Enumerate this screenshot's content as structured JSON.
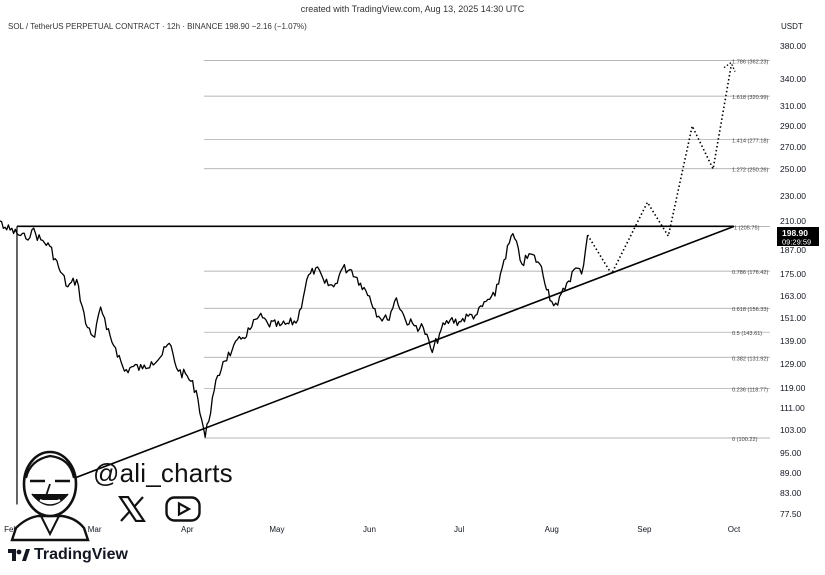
{
  "header": {
    "created": "created with TradingView.com, Aug 13, 2025 14:30 UTC",
    "symbol_line": "SOL / TetherUS PERPETUAL CONTRACT · 12h · BINANCE  198.90  −2.16 (−1.07%)",
    "currency": "USDT"
  },
  "overlay": {
    "handle": "@ali_charts",
    "brand": "TradingView",
    "icons": [
      "x-logo-icon",
      "youtube-icon",
      "tradingview-logo-icon",
      "author-avatar-icon"
    ]
  },
  "chart_data": {
    "type": "line",
    "y_ticks": [
      "380.00",
      "340.00",
      "310.00",
      "290.00",
      "270.00",
      "250.00",
      "230.00",
      "210.00",
      "187.00",
      "175.00",
      "163.00",
      "151.00",
      "139.00",
      "129.00",
      "119.00",
      "111.00",
      "103.00",
      "95.00",
      "89.00",
      "83.00",
      "77.50"
    ],
    "y_tick_values": [
      380,
      340,
      310,
      290,
      270,
      250,
      230,
      210,
      187,
      175,
      163,
      151,
      139,
      129,
      119,
      111,
      103,
      95,
      89,
      83,
      77.5
    ],
    "x_ticks": [
      "Feb",
      "Mar",
      "Apr",
      "May",
      "Jun",
      "Jul",
      "Aug",
      "Sep",
      "Oct"
    ],
    "x_tick_values": [
      "2025-02-01",
      "2025-03-01",
      "2025-04-01",
      "2025-05-01",
      "2025-06-01",
      "2025-07-01",
      "2025-08-01",
      "2025-09-01",
      "2025-10-01"
    ],
    "price_label": "198.90",
    "countdown_label": "09:29:59",
    "colors": {
      "price_line": "#000000",
      "price_badge": "#000000",
      "fib_lines": "#9e9e9e",
      "background": "#ffffff"
    },
    "fib_levels": [
      {
        "label": "1.786 (362.23)",
        "value": 362.23
      },
      {
        "label": "1.618 (320.99)",
        "value": 320.99
      },
      {
        "label": "1.414 (277.18)",
        "value": 277.18
      },
      {
        "label": "1.272 (250.26)",
        "value": 250.26
      },
      {
        "label": "1 (205.75)",
        "value": 205.75
      },
      {
        "label": "0.786 (176.42)",
        "value": 176.42
      },
      {
        "label": "0.618 (156.33)",
        "value": 156.33
      },
      {
        "label": "0.5 (143.61)",
        "value": 143.61
      },
      {
        "label": "0.382 (131.92)",
        "value": 131.92
      },
      {
        "label": "0.236 (118.77)",
        "value": 118.77
      },
      {
        "label": "0 (100.22)",
        "value": 100.22
      }
    ],
    "resistance": {
      "value": 205.75,
      "from": "2025-02-03",
      "to": "2025-10-01"
    },
    "support_trendline": [
      [
        "2025-02-15",
        85
      ],
      [
        "2025-10-01",
        205.75
      ]
    ],
    "price_series": {
      "name": "SOL/USDT 12h",
      "points": [
        [
          "2025-01-22",
          232
        ],
        [
          "2025-01-26",
          215
        ],
        [
          "2025-01-30",
          205
        ],
        [
          "2025-02-03",
          200
        ],
        [
          "2025-02-06",
          196
        ],
        [
          "2025-02-08",
          203
        ],
        [
          "2025-02-11",
          195
        ],
        [
          "2025-02-14",
          190
        ],
        [
          "2025-02-17",
          178
        ],
        [
          "2025-02-20",
          168
        ],
        [
          "2025-02-23",
          172
        ],
        [
          "2025-02-26",
          148
        ],
        [
          "2025-03-01",
          141
        ],
        [
          "2025-03-03",
          157
        ],
        [
          "2025-03-05",
          145
        ],
        [
          "2025-03-08",
          136
        ],
        [
          "2025-03-11",
          126
        ],
        [
          "2025-03-14",
          128
        ],
        [
          "2025-03-17",
          127
        ],
        [
          "2025-03-20",
          130
        ],
        [
          "2025-03-23",
          132
        ],
        [
          "2025-03-26",
          138
        ],
        [
          "2025-03-29",
          126
        ],
        [
          "2025-04-01",
          124
        ],
        [
          "2025-04-04",
          118
        ],
        [
          "2025-04-07",
          100.5
        ],
        [
          "2025-04-10",
          118
        ],
        [
          "2025-04-13",
          130
        ],
        [
          "2025-04-16",
          135
        ],
        [
          "2025-04-19",
          140
        ],
        [
          "2025-04-22",
          145
        ],
        [
          "2025-04-25",
          152
        ],
        [
          "2025-04-28",
          148
        ],
        [
          "2025-05-02",
          147
        ],
        [
          "2025-05-05",
          148
        ],
        [
          "2025-05-08",
          150
        ],
        [
          "2025-05-11",
          172
        ],
        [
          "2025-05-14",
          178
        ],
        [
          "2025-05-17",
          170
        ],
        [
          "2025-05-20",
          168
        ],
        [
          "2025-05-23",
          178
        ],
        [
          "2025-05-26",
          177
        ],
        [
          "2025-05-29",
          170
        ],
        [
          "2025-06-01",
          163
        ],
        [
          "2025-06-04",
          152
        ],
        [
          "2025-06-07",
          150
        ],
        [
          "2025-06-10",
          162
        ],
        [
          "2025-06-13",
          150
        ],
        [
          "2025-06-16",
          147
        ],
        [
          "2025-06-19",
          146
        ],
        [
          "2025-06-22",
          134
        ],
        [
          "2025-06-25",
          145
        ],
        [
          "2025-06-28",
          150
        ],
        [
          "2025-07-01",
          149
        ],
        [
          "2025-07-04",
          152
        ],
        [
          "2025-07-07",
          153
        ],
        [
          "2025-07-10",
          160
        ],
        [
          "2025-07-13",
          163
        ],
        [
          "2025-07-16",
          182
        ],
        [
          "2025-07-19",
          200
        ],
        [
          "2025-07-22",
          180
        ],
        [
          "2025-07-25",
          185
        ],
        [
          "2025-07-28",
          180
        ],
        [
          "2025-08-01",
          160
        ],
        [
          "2025-08-03",
          158
        ],
        [
          "2025-08-06",
          170
        ],
        [
          "2025-08-09",
          178
        ],
        [
          "2025-08-11",
          175
        ],
        [
          "2025-08-13",
          198.9
        ]
      ]
    },
    "projection": {
      "style": "dotted",
      "points": [
        [
          "2025-08-13",
          198.9
        ],
        [
          "2025-08-21",
          175
        ],
        [
          "2025-09-02",
          225
        ],
        [
          "2025-09-09",
          198
        ],
        [
          "2025-09-17",
          290
        ],
        [
          "2025-09-24",
          250
        ],
        [
          "2025-09-30",
          355
        ]
      ]
    }
  }
}
